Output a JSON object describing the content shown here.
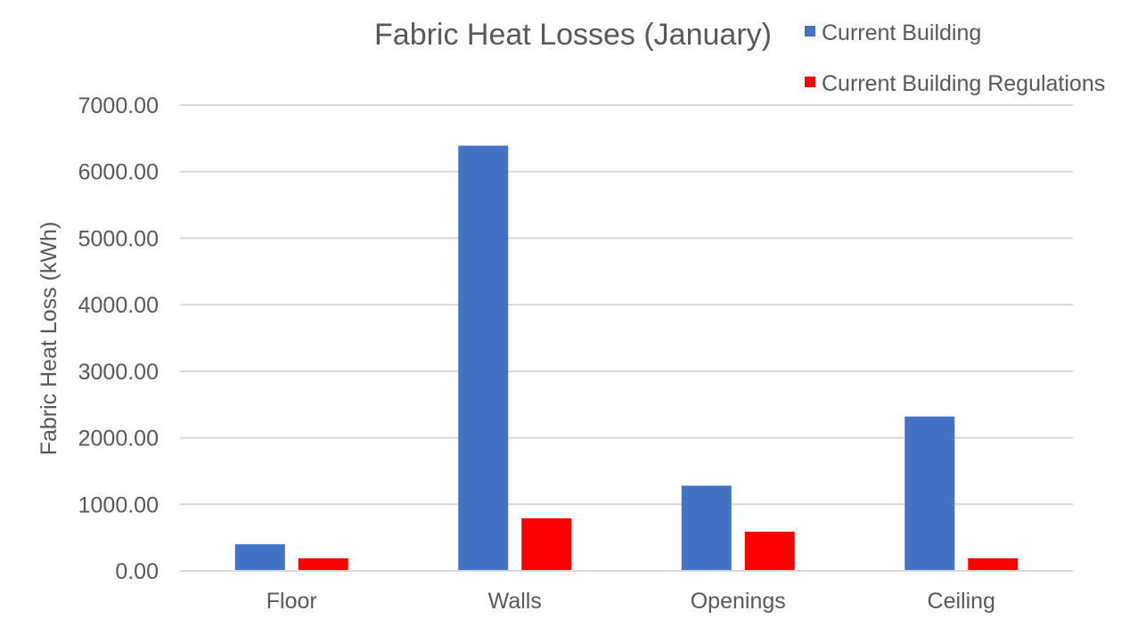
{
  "chart_data": {
    "type": "bar",
    "title": "Fabric Heat Losses (January)",
    "xlabel": "",
    "ylabel": "Fabric Heat Loss (kWh)",
    "categories": [
      "Floor",
      "Walls",
      "Openings",
      "Ceiling"
    ],
    "series": [
      {
        "name": "Current Building",
        "color": "#4472C4",
        "values": [
          400,
          6390,
          1280,
          2320
        ]
      },
      {
        "name": "Current Building Regulations",
        "color": "#FF0000",
        "values": [
          190,
          790,
          590,
          190
        ]
      }
    ],
    "ylim": [
      0,
      7000
    ],
    "yticks": [
      "0.00",
      "1000.00",
      "2000.00",
      "3000.00",
      "4000.00",
      "5000.00",
      "6000.00",
      "7000.00"
    ],
    "grid": true,
    "legend_position": "top-right"
  }
}
